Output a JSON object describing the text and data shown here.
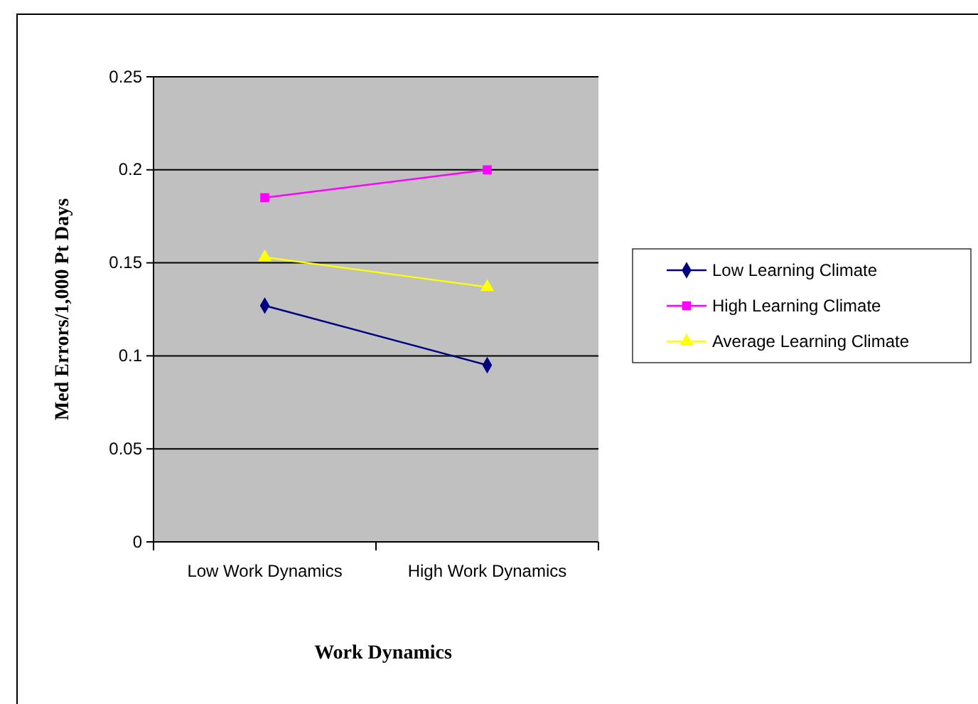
{
  "chart_data": {
    "type": "line",
    "xlabel": "Work Dynamics",
    "ylabel": "Med Errors/1,000 Pt Days",
    "categories": [
      "Low Work Dynamics",
      "High Work Dynamics"
    ],
    "series": [
      {
        "name": "Low Learning Climate",
        "color": "#000080",
        "values": [
          0.127,
          0.095
        ],
        "marker": "diamond"
      },
      {
        "name": "High Learning Climate",
        "color": "#ff00ff",
        "values": [
          0.185,
          0.2
        ],
        "marker": "square"
      },
      {
        "name": "Average Learning Climate",
        "color": "#ffff00",
        "values": [
          0.153,
          0.137
        ],
        "marker": "triangle"
      }
    ],
    "ylim": [
      0,
      0.25
    ],
    "yticks": [
      0,
      0.05,
      0.1,
      0.15,
      0.2,
      0.25
    ],
    "grid": "y",
    "legend": "right"
  }
}
